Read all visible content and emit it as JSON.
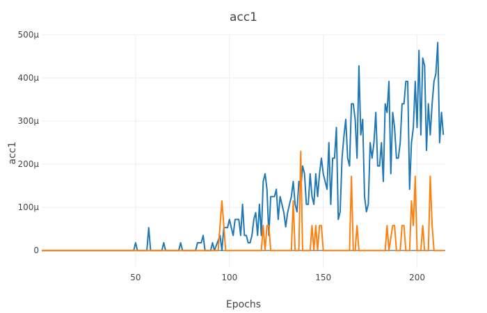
{
  "chart_data": {
    "type": "line",
    "title": "acc1",
    "xlabel": "Epochs",
    "ylabel": "acc1",
    "xlim": [
      0,
      215
    ],
    "ylim": [
      -4e-05,
      0.0005
    ],
    "xticks": [
      50,
      100,
      150,
      200
    ],
    "xtick_labels": [
      "50",
      "100",
      "150",
      "200"
    ],
    "yticks": [
      0,
      0.0001,
      0.0002,
      0.0003,
      0.0004,
      0.0005
    ],
    "ytick_labels": [
      "0",
      "100µ",
      "200µ",
      "300µ",
      "400µ",
      "500µ"
    ],
    "grid": true,
    "legend": "none",
    "series": [
      {
        "color": "#1f77b4",
        "points": [
          [
            0,
            0
          ],
          [
            49,
            0
          ],
          [
            50,
            1.8e-05
          ],
          [
            51,
            0
          ],
          [
            56,
            0
          ],
          [
            57,
            5.3e-05
          ],
          [
            58,
            0
          ],
          [
            64,
            0
          ],
          [
            65,
            1.8e-05
          ],
          [
            66,
            0
          ],
          [
            73,
            0
          ],
          [
            74,
            1.8e-05
          ],
          [
            75,
            0
          ],
          [
            82,
            0
          ],
          [
            83,
            1.8e-05
          ],
          [
            85,
            1.8e-05
          ],
          [
            86,
            3.5e-05
          ],
          [
            87,
            0
          ],
          [
            90,
            0
          ],
          [
            91,
            1.8e-05
          ],
          [
            92,
            0
          ],
          [
            95,
            3.5e-05
          ],
          [
            96,
            0
          ],
          [
            97,
            5.3e-05
          ],
          [
            98,
            5.3e-05
          ],
          [
            99,
            5.3e-05
          ],
          [
            100,
            7.2e-05
          ],
          [
            101,
            5.3e-05
          ],
          [
            102,
            3.5e-05
          ],
          [
            103,
            7.2e-05
          ],
          [
            105,
            7.2e-05
          ],
          [
            106,
            3.5e-05
          ],
          [
            107,
            0.000107
          ],
          [
            108,
            3.5e-05
          ],
          [
            109,
            3.5e-05
          ],
          [
            110,
            1.8e-05
          ],
          [
            111,
            1.8e-05
          ],
          [
            112,
            3.5e-05
          ],
          [
            113,
            7.2e-05
          ],
          [
            114,
            8.8e-05
          ],
          [
            115,
            3.5e-05
          ],
          [
            116,
            0.000107
          ],
          [
            117,
            3.5e-05
          ],
          [
            118,
            0.00016
          ],
          [
            119,
            0.000178
          ],
          [
            120,
            0.000142
          ],
          [
            121,
            3.5e-05
          ],
          [
            122,
            0.000125
          ],
          [
            123,
            0.000125
          ],
          [
            124,
            0.000125
          ],
          [
            125,
            0.000142
          ],
          [
            126,
            7.2e-05
          ],
          [
            127,
            0.000125
          ],
          [
            128,
            0.000107
          ],
          [
            129,
            8.8e-05
          ],
          [
            130,
            5.5e-05
          ],
          [
            131,
            8.8e-05
          ],
          [
            132,
            0.000107
          ],
          [
            133,
            0.000125
          ],
          [
            134,
            0.00016
          ],
          [
            135,
            0.000107
          ],
          [
            136,
            9e-05
          ],
          [
            137,
            0.00016
          ],
          [
            138,
            0.000142
          ],
          [
            139,
            0.000196
          ],
          [
            140,
            0.000178
          ],
          [
            141,
            0.000107
          ],
          [
            142,
            0.000107
          ],
          [
            143,
            0.000178
          ],
          [
            144,
            0.000125
          ],
          [
            145,
            0.000107
          ],
          [
            146,
            0.000178
          ],
          [
            147,
            0.000125
          ],
          [
            148,
            0.000178
          ],
          [
            149,
            0.000214
          ],
          [
            150,
            0.000178
          ],
          [
            151,
            0.00016
          ],
          [
            152,
            0.000142
          ],
          [
            153,
            0.00025
          ],
          [
            154,
            0.000107
          ],
          [
            155,
            0.000214
          ],
          [
            156,
            0.000214
          ],
          [
            157,
            0.000285
          ],
          [
            158,
            7.2e-05
          ],
          [
            159,
            9e-05
          ],
          [
            160,
            0.000214
          ],
          [
            161,
            0.000265
          ],
          [
            162,
            0.000304
          ],
          [
            163,
            0.000214
          ],
          [
            164,
            0.000196
          ],
          [
            165,
            0.00034
          ],
          [
            166,
            0.00034
          ],
          [
            167,
            0.000304
          ],
          [
            168,
            0.000214
          ],
          [
            169,
            0.000428
          ],
          [
            170,
            0.000268
          ],
          [
            171,
            0.000304
          ],
          [
            172,
            0.000125
          ],
          [
            173,
            9e-05
          ],
          [
            174,
            0.000107
          ],
          [
            175,
            0.00025
          ],
          [
            176,
            0.000214
          ],
          [
            177,
            0.00025
          ],
          [
            178,
            0.00032
          ],
          [
            179,
            0.000196
          ],
          [
            180,
            0.000196
          ],
          [
            181,
            0.00025
          ],
          [
            182,
            0.00016
          ],
          [
            183,
            0.00034
          ],
          [
            184,
            0.00032
          ],
          [
            185,
            0.000392
          ],
          [
            186,
            0.000178
          ],
          [
            187,
            0.00032
          ],
          [
            188,
            0.000285
          ],
          [
            189,
            0.000214
          ],
          [
            190,
            0.000214
          ],
          [
            191,
            0.00025
          ],
          [
            192,
            0.00034
          ],
          [
            193,
            0.00034
          ],
          [
            194,
            0.000392
          ],
          [
            195,
            0.000392
          ],
          [
            196,
            0.000142
          ],
          [
            197,
            0.00025
          ],
          [
            198,
            0.000285
          ],
          [
            199,
            0.000392
          ],
          [
            200,
            0.000285
          ],
          [
            201,
            0.000464
          ],
          [
            202,
            0.000268
          ],
          [
            203,
            0.000446
          ],
          [
            204,
            0.000428
          ],
          [
            205,
            0.000232
          ],
          [
            206,
            0.00034
          ],
          [
            207,
            0.000268
          ],
          [
            208,
            0.00034
          ],
          [
            209,
            0.000392
          ],
          [
            210,
            0.00041
          ],
          [
            211,
            0.000482
          ],
          [
            212,
            0.00025
          ],
          [
            213,
            0.00032
          ],
          [
            214,
            0.000268
          ]
        ]
      },
      {
        "color": "#ff7f0e",
        "points": [
          [
            0,
            0
          ],
          [
            94,
            0
          ],
          [
            96,
            0.000115
          ],
          [
            98,
            0
          ],
          [
            117,
            0
          ],
          [
            118,
            5.8e-05
          ],
          [
            119,
            0
          ],
          [
            120,
            5.8e-05
          ],
          [
            121,
            5.8e-05
          ],
          [
            122,
            0
          ],
          [
            133,
            0
          ],
          [
            134,
            0.000115
          ],
          [
            135,
            0
          ],
          [
            137,
            0
          ],
          [
            138,
            0.00023
          ],
          [
            139,
            0
          ],
          [
            143,
            0
          ],
          [
            144,
            5.8e-05
          ],
          [
            145,
            0
          ],
          [
            146,
            5.8e-05
          ],
          [
            147,
            0
          ],
          [
            148,
            5.8e-05
          ],
          [
            149,
            5.8e-05
          ],
          [
            150,
            0
          ],
          [
            164,
            0
          ],
          [
            165,
            0.000172
          ],
          [
            166,
            0
          ],
          [
            167,
            0
          ],
          [
            168,
            5.8e-05
          ],
          [
            169,
            0
          ],
          [
            183,
            0
          ],
          [
            184,
            5.8e-05
          ],
          [
            185,
            0
          ],
          [
            187,
            5.8e-05
          ],
          [
            188,
            5.8e-05
          ],
          [
            189,
            0
          ],
          [
            191,
            0
          ],
          [
            192,
            5.8e-05
          ],
          [
            193,
            5.8e-05
          ],
          [
            194,
            0
          ],
          [
            196,
            0
          ],
          [
            197,
            0.000115
          ],
          [
            198,
            5.8e-05
          ],
          [
            199,
            0.000172
          ],
          [
            200,
            0
          ],
          [
            202,
            0
          ],
          [
            203,
            5.8e-05
          ],
          [
            204,
            0
          ],
          [
            206,
            0
          ],
          [
            207,
            0.000172
          ],
          [
            208,
            5.8e-05
          ],
          [
            209,
            0
          ],
          [
            214,
            0
          ]
        ]
      }
    ]
  }
}
